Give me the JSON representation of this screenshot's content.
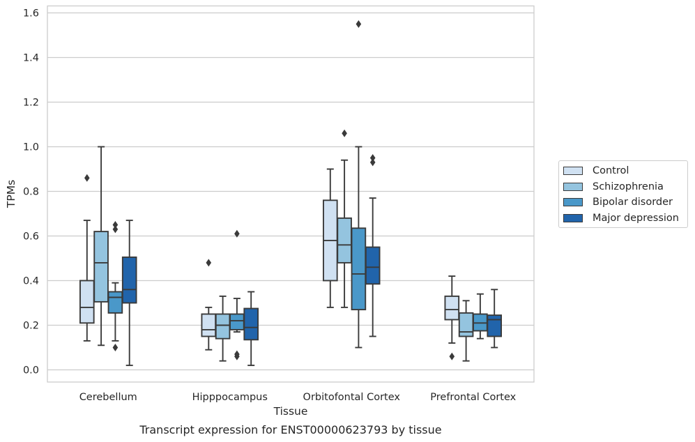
{
  "chart_data": {
    "type": "box",
    "title": "Transcript expression for ENST00000623793 by tissue",
    "xlabel": "Tissue",
    "ylabel": "TPMs",
    "ylim": [
      -0.05,
      1.63
    ],
    "yticks": [
      "0.0",
      "0.2",
      "0.4",
      "0.6",
      "0.8",
      "1.0",
      "1.2",
      "1.4",
      "1.6"
    ],
    "categories": [
      "Cerebellum",
      "Hipppocampus",
      "Orbitofontal Cortex",
      "Prefrontal Cortex"
    ],
    "grid": "horizontal",
    "legend_position": "right",
    "series": [
      {
        "name": "Control",
        "color": "#d0e1f2",
        "boxes": [
          {
            "whislo": 0.13,
            "q1": 0.21,
            "med": 0.28,
            "q3": 0.4,
            "whishi": 0.67,
            "fliers": [
              0.86
            ]
          },
          {
            "whislo": 0.09,
            "q1": 0.15,
            "med": 0.18,
            "q3": 0.25,
            "whishi": 0.28,
            "fliers": [
              0.48
            ]
          },
          {
            "whislo": 0.28,
            "q1": 0.4,
            "med": 0.58,
            "q3": 0.76,
            "whishi": 0.9,
            "fliers": []
          },
          {
            "whislo": 0.12,
            "q1": 0.225,
            "med": 0.27,
            "q3": 0.33,
            "whishi": 0.42,
            "fliers": [
              0.06
            ]
          }
        ]
      },
      {
        "name": "Schizophrenia",
        "color": "#94c4df",
        "boxes": [
          {
            "whislo": 0.11,
            "q1": 0.305,
            "med": 0.48,
            "q3": 0.62,
            "whishi": 1.0,
            "fliers": []
          },
          {
            "whislo": 0.04,
            "q1": 0.14,
            "med": 0.2,
            "q3": 0.25,
            "whishi": 0.33,
            "fliers": []
          },
          {
            "whislo": 0.28,
            "q1": 0.48,
            "med": 0.56,
            "q3": 0.68,
            "whishi": 0.94,
            "fliers": [
              1.06
            ]
          },
          {
            "whislo": 0.04,
            "q1": 0.15,
            "med": 0.17,
            "q3": 0.255,
            "whishi": 0.31,
            "fliers": []
          }
        ]
      },
      {
        "name": "Bipolar disorder",
        "color": "#4a98c9",
        "boxes": [
          {
            "whislo": 0.13,
            "q1": 0.255,
            "med": 0.325,
            "q3": 0.35,
            "whishi": 0.39,
            "fliers": [
              0.1,
              0.63,
              0.65
            ]
          },
          {
            "whislo": 0.17,
            "q1": 0.18,
            "med": 0.22,
            "q3": 0.25,
            "whishi": 0.32,
            "fliers": [
              0.06,
              0.07,
              0.61
            ]
          },
          {
            "whislo": 0.1,
            "q1": 0.27,
            "med": 0.43,
            "q3": 0.635,
            "whishi": 1.0,
            "fliers": [
              1.55
            ]
          },
          {
            "whislo": 0.14,
            "q1": 0.175,
            "med": 0.21,
            "q3": 0.25,
            "whishi": 0.34,
            "fliers": []
          }
        ]
      },
      {
        "name": "Major depression",
        "color": "#2164ab",
        "boxes": [
          {
            "whislo": 0.02,
            "q1": 0.3,
            "med": 0.36,
            "q3": 0.505,
            "whishi": 0.67,
            "fliers": []
          },
          {
            "whislo": 0.02,
            "q1": 0.135,
            "med": 0.19,
            "q3": 0.275,
            "whishi": 0.35,
            "fliers": []
          },
          {
            "whislo": 0.15,
            "q1": 0.385,
            "med": 0.46,
            "q3": 0.55,
            "whishi": 0.77,
            "fliers": [
              0.93,
              0.95
            ]
          },
          {
            "whislo": 0.1,
            "q1": 0.15,
            "med": 0.225,
            "q3": 0.245,
            "whishi": 0.36,
            "fliers": []
          }
        ]
      }
    ]
  }
}
